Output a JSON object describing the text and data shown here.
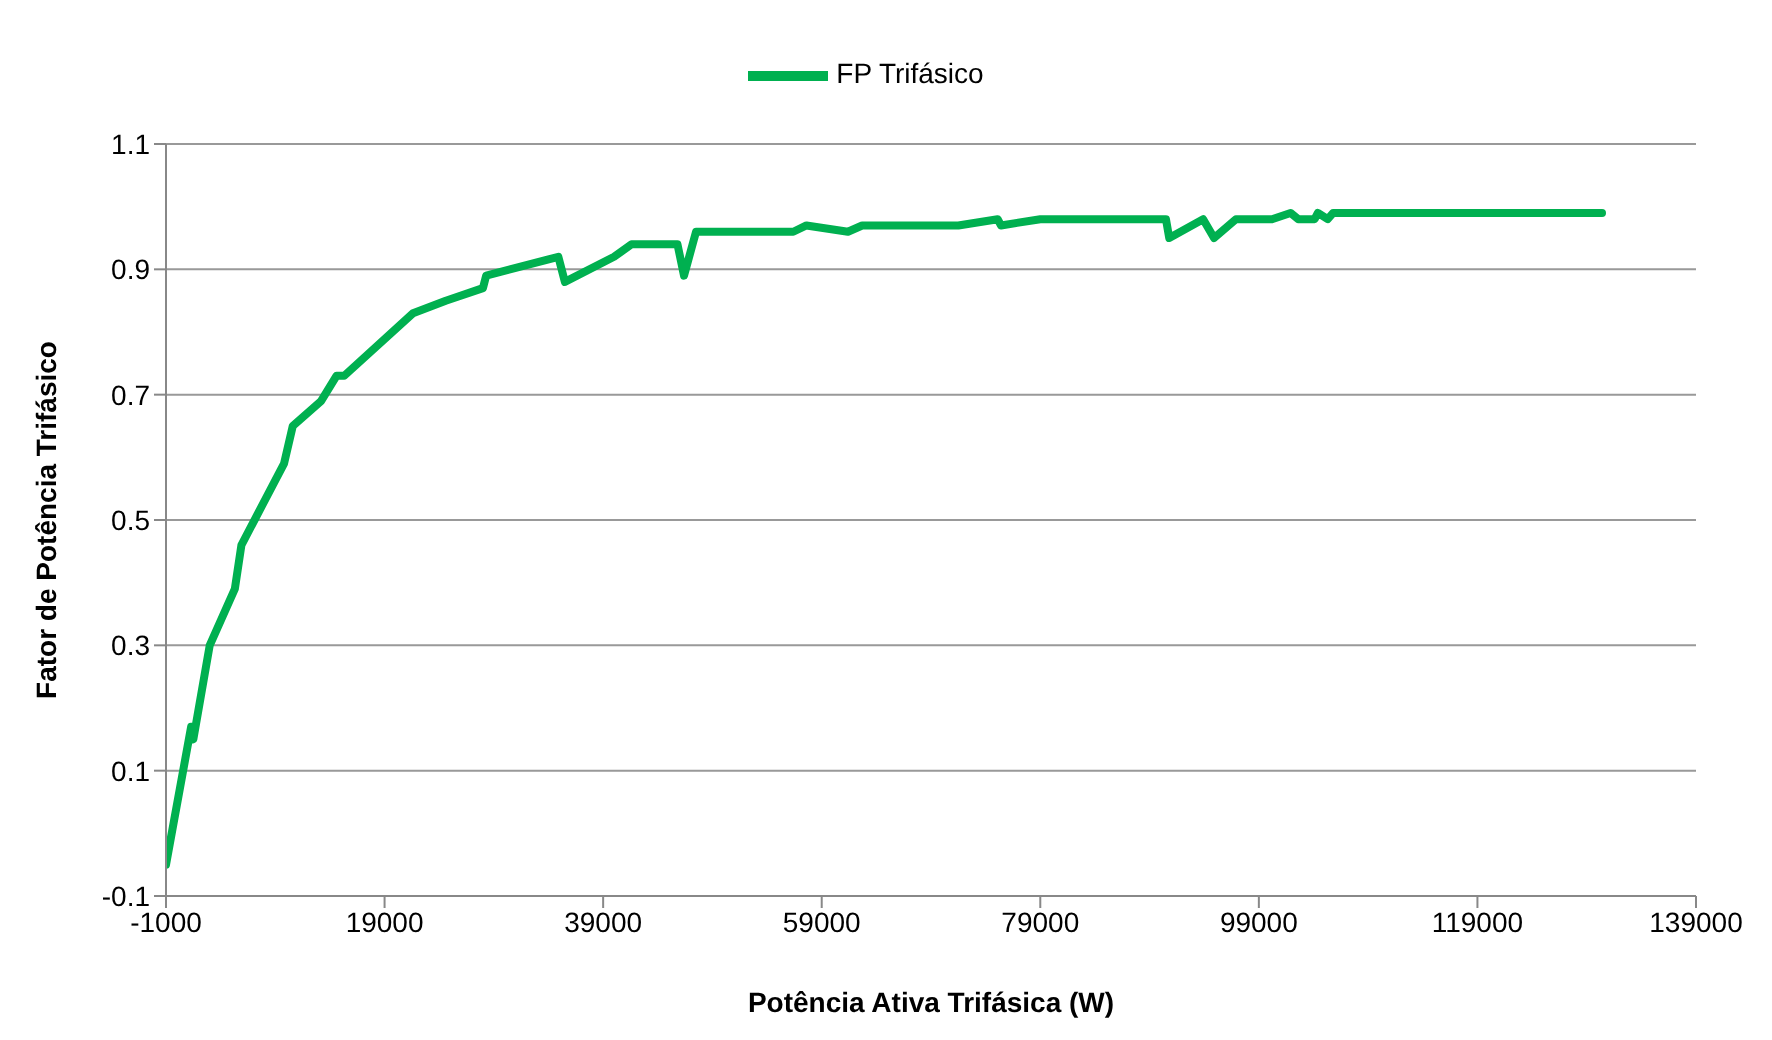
{
  "chart_data": {
    "type": "line",
    "xlabel": "Potência Ativa Trifásica (W)",
    "ylabel": "Fator de Potência Trifásico",
    "xlim": [
      -1000,
      139000
    ],
    "xticks": [
      -1000,
      19000,
      39000,
      59000,
      79000,
      99000,
      119000,
      139000
    ],
    "ylim": [
      -0.1,
      1.1
    ],
    "yticks": [
      -0.1,
      0.1,
      0.3,
      0.5,
      0.7,
      0.9,
      1.1
    ],
    "grid": "y",
    "legend": "top",
    "marker": "none",
    "line_style": "solid",
    "series": [
      {
        "name": "FP Trifásico",
        "color": "#00b050",
        "x": [
          -1000,
          1300,
          1500,
          3000,
          5300,
          5900,
          9800,
          10600,
          13200,
          14600,
          15300,
          21600,
          24600,
          28000,
          28300,
          34900,
          35500,
          40000,
          41600,
          45800,
          46400,
          47500,
          56400,
          57600,
          61400,
          62700,
          71500,
          75100,
          75400,
          79000,
          90500,
          90800,
          93900,
          94900,
          96900,
          100200,
          101900,
          102600,
          104100,
          104400,
          105300,
          105800,
          130400
        ],
        "values": [
          -0.05,
          0.17,
          0.15,
          0.3,
          0.39,
          0.46,
          0.59,
          0.65,
          0.69,
          0.73,
          0.73,
          0.83,
          0.85,
          0.87,
          0.89,
          0.92,
          0.88,
          0.92,
          0.94,
          0.94,
          0.89,
          0.96,
          0.96,
          0.97,
          0.96,
          0.97,
          0.97,
          0.98,
          0.97,
          0.98,
          0.98,
          0.95,
          0.98,
          0.95,
          0.98,
          0.98,
          0.99,
          0.98,
          0.98,
          0.99,
          0.98,
          0.99,
          0.99
        ]
      }
    ]
  }
}
